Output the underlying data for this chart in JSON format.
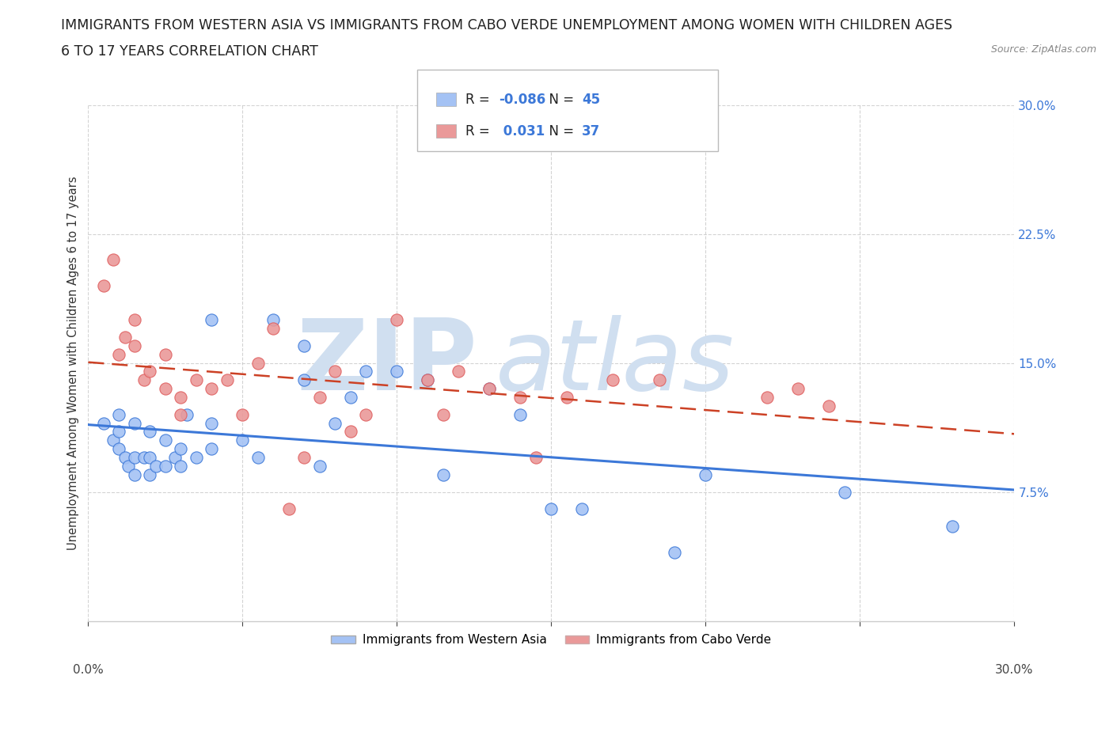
{
  "title_line1": "IMMIGRANTS FROM WESTERN ASIA VS IMMIGRANTS FROM CABO VERDE UNEMPLOYMENT AMONG WOMEN WITH CHILDREN AGES",
  "title_line2": "6 TO 17 YEARS CORRELATION CHART",
  "source_text": "Source: ZipAtlas.com",
  "ylabel": "Unemployment Among Women with Children Ages 6 to 17 years",
  "xlim": [
    0.0,
    0.3
  ],
  "ylim": [
    0.0,
    0.3
  ],
  "xticks": [
    0.0,
    0.05,
    0.1,
    0.15,
    0.2,
    0.25,
    0.3
  ],
  "yticks": [
    0.075,
    0.15,
    0.225,
    0.3
  ],
  "ytick_labels": [
    "7.5%",
    "15.0%",
    "22.5%",
    "30.0%"
  ],
  "xtick_labels": [
    "",
    "",
    "",
    "",
    "",
    "",
    ""
  ],
  "blue_R": -0.086,
  "blue_N": 45,
  "pink_R": 0.031,
  "pink_N": 37,
  "blue_color": "#a4c2f4",
  "pink_color": "#ea9999",
  "blue_line_color": "#3c78d8",
  "pink_line_color": "#cc4125",
  "legend_label_blue": "Immigrants from Western Asia",
  "legend_label_pink": "Immigrants from Cabo Verde",
  "blue_scatter_x": [
    0.005,
    0.008,
    0.01,
    0.01,
    0.01,
    0.012,
    0.013,
    0.015,
    0.015,
    0.015,
    0.018,
    0.02,
    0.02,
    0.02,
    0.022,
    0.025,
    0.025,
    0.028,
    0.03,
    0.03,
    0.032,
    0.035,
    0.04,
    0.04,
    0.04,
    0.05,
    0.055,
    0.06,
    0.07,
    0.07,
    0.075,
    0.08,
    0.085,
    0.09,
    0.1,
    0.11,
    0.115,
    0.13,
    0.14,
    0.15,
    0.16,
    0.19,
    0.2,
    0.245,
    0.28
  ],
  "blue_scatter_y": [
    0.115,
    0.105,
    0.1,
    0.11,
    0.12,
    0.095,
    0.09,
    0.085,
    0.095,
    0.115,
    0.095,
    0.085,
    0.095,
    0.11,
    0.09,
    0.09,
    0.105,
    0.095,
    0.09,
    0.1,
    0.12,
    0.095,
    0.1,
    0.115,
    0.175,
    0.105,
    0.095,
    0.175,
    0.14,
    0.16,
    0.09,
    0.115,
    0.13,
    0.145,
    0.145,
    0.14,
    0.085,
    0.135,
    0.12,
    0.065,
    0.065,
    0.04,
    0.085,
    0.075,
    0.055
  ],
  "pink_scatter_x": [
    0.005,
    0.008,
    0.01,
    0.012,
    0.015,
    0.015,
    0.018,
    0.02,
    0.025,
    0.025,
    0.03,
    0.03,
    0.035,
    0.04,
    0.045,
    0.05,
    0.055,
    0.06,
    0.065,
    0.07,
    0.075,
    0.08,
    0.085,
    0.09,
    0.1,
    0.11,
    0.115,
    0.12,
    0.13,
    0.14,
    0.145,
    0.155,
    0.17,
    0.185,
    0.22,
    0.23,
    0.24
  ],
  "pink_scatter_y": [
    0.195,
    0.21,
    0.155,
    0.165,
    0.175,
    0.16,
    0.14,
    0.145,
    0.135,
    0.155,
    0.12,
    0.13,
    0.14,
    0.135,
    0.14,
    0.12,
    0.15,
    0.17,
    0.065,
    0.095,
    0.13,
    0.145,
    0.11,
    0.12,
    0.175,
    0.14,
    0.12,
    0.145,
    0.135,
    0.13,
    0.095,
    0.13,
    0.14,
    0.14,
    0.13,
    0.135,
    0.125
  ],
  "background_color": "#ffffff",
  "grid_color": "#c9c9c9",
  "watermark_zip_color": "#d0dff0",
  "watermark_atlas_color": "#d0dff0",
  "title_fontsize": 12.5,
  "axis_label_fontsize": 10.5,
  "tick_fontsize": 11,
  "legend_fontsize": 11
}
